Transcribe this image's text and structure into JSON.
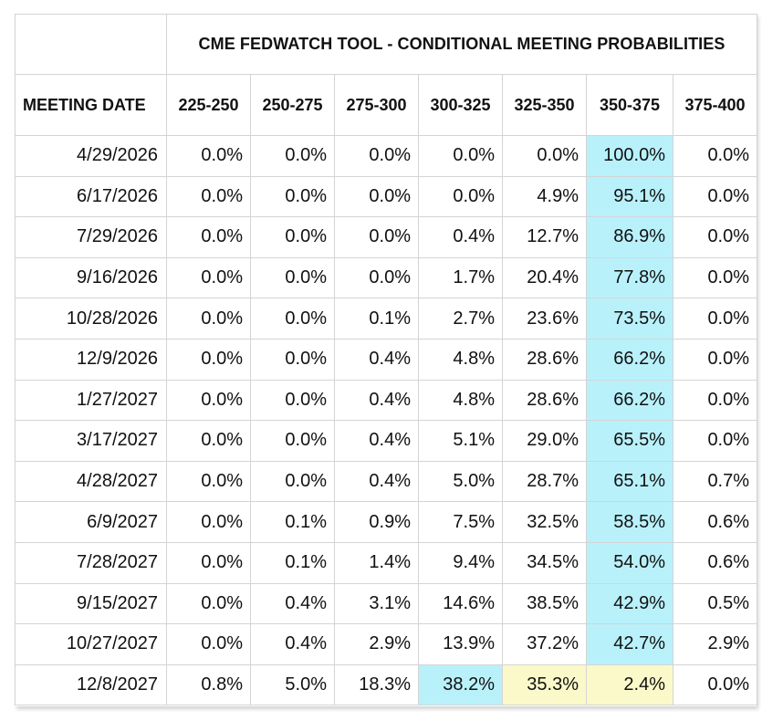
{
  "table": {
    "title": "CME FEDWATCH TOOL - CONDITIONAL MEETING PROBABILITIES",
    "meeting_date_header": "MEETING DATE",
    "columns": [
      "225-250",
      "250-275",
      "275-300",
      "300-325",
      "325-350",
      "350-375",
      "375-400"
    ],
    "highlight_colors": {
      "blue": "#b9f1fb",
      "yellow": "#fbf9c9"
    },
    "rows": [
      {
        "date": "4/29/2026",
        "values": [
          "0.0%",
          "0.0%",
          "0.0%",
          "0.0%",
          "0.0%",
          "100.0%",
          "0.0%"
        ],
        "highlight": {
          "5": "blue"
        }
      },
      {
        "date": "6/17/2026",
        "values": [
          "0.0%",
          "0.0%",
          "0.0%",
          "0.0%",
          "4.9%",
          "95.1%",
          "0.0%"
        ],
        "highlight": {
          "5": "blue"
        }
      },
      {
        "date": "7/29/2026",
        "values": [
          "0.0%",
          "0.0%",
          "0.0%",
          "0.4%",
          "12.7%",
          "86.9%",
          "0.0%"
        ],
        "highlight": {
          "5": "blue"
        }
      },
      {
        "date": "9/16/2026",
        "values": [
          "0.0%",
          "0.0%",
          "0.0%",
          "1.7%",
          "20.4%",
          "77.8%",
          "0.0%"
        ],
        "highlight": {
          "5": "blue"
        }
      },
      {
        "date": "10/28/2026",
        "values": [
          "0.0%",
          "0.0%",
          "0.1%",
          "2.7%",
          "23.6%",
          "73.5%",
          "0.0%"
        ],
        "highlight": {
          "5": "blue"
        }
      },
      {
        "date": "12/9/2026",
        "values": [
          "0.0%",
          "0.0%",
          "0.4%",
          "4.8%",
          "28.6%",
          "66.2%",
          "0.0%"
        ],
        "highlight": {
          "5": "blue"
        }
      },
      {
        "date": "1/27/2027",
        "values": [
          "0.0%",
          "0.0%",
          "0.4%",
          "4.8%",
          "28.6%",
          "66.2%",
          "0.0%"
        ],
        "highlight": {
          "5": "blue"
        }
      },
      {
        "date": "3/17/2027",
        "values": [
          "0.0%",
          "0.0%",
          "0.4%",
          "5.1%",
          "29.0%",
          "65.5%",
          "0.0%"
        ],
        "highlight": {
          "5": "blue"
        }
      },
      {
        "date": "4/28/2027",
        "values": [
          "0.0%",
          "0.0%",
          "0.4%",
          "5.0%",
          "28.7%",
          "65.1%",
          "0.7%"
        ],
        "highlight": {
          "5": "blue"
        }
      },
      {
        "date": "6/9/2027",
        "values": [
          "0.0%",
          "0.1%",
          "0.9%",
          "7.5%",
          "32.5%",
          "58.5%",
          "0.6%"
        ],
        "highlight": {
          "5": "blue"
        }
      },
      {
        "date": "7/28/2027",
        "values": [
          "0.0%",
          "0.1%",
          "1.4%",
          "9.4%",
          "34.5%",
          "54.0%",
          "0.6%"
        ],
        "highlight": {
          "5": "blue"
        }
      },
      {
        "date": "9/15/2027",
        "values": [
          "0.0%",
          "0.4%",
          "3.1%",
          "14.6%",
          "38.5%",
          "42.9%",
          "0.5%"
        ],
        "highlight": {
          "5": "blue"
        }
      },
      {
        "date": "10/27/2027",
        "values": [
          "0.0%",
          "0.4%",
          "2.9%",
          "13.9%",
          "37.2%",
          "42.7%",
          "2.9%"
        ],
        "highlight": {
          "5": "blue"
        }
      },
      {
        "date": "12/8/2027",
        "values": [
          "0.8%",
          "5.0%",
          "18.3%",
          "38.2%",
          "35.3%",
          "2.4%",
          "0.0%"
        ],
        "highlight": {
          "3": "blue",
          "4": "yellow",
          "5": "yellow"
        }
      }
    ]
  }
}
